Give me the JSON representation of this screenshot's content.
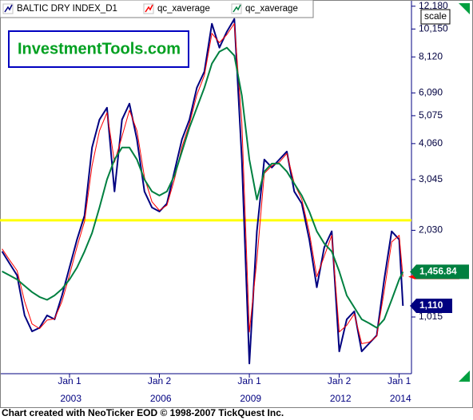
{
  "chart_data": {
    "type": "line",
    "logo": "InvestmentTools.com",
    "scale_label": "scale",
    "footer": "Chart created with NeoTicker EOD © 1998-2007 TickQuest Inc.",
    "x": [
      2000.75,
      2001,
      2001.25,
      2001.5,
      2001.75,
      2002,
      2002.25,
      2002.5,
      2002.75,
      2003,
      2003.25,
      2003.5,
      2003.75,
      2004,
      2004.25,
      2004.5,
      2004.75,
      2005,
      2005.25,
      2005.5,
      2005.75,
      2006,
      2006.25,
      2006.5,
      2006.75,
      2007,
      2007.25,
      2007.5,
      2007.75,
      2008,
      2008.25,
      2008.5,
      2008.75,
      2009,
      2009.25,
      2009.5,
      2009.75,
      2010,
      2010.25,
      2010.5,
      2010.75,
      2011,
      2011.25,
      2011.5,
      2011.75,
      2012,
      2012.25,
      2012.5,
      2012.75,
      2013,
      2013.25,
      2013.5,
      2013.75,
      2014,
      2014.125
    ],
    "series": [
      {
        "name": "BALTIC DRY INDEX_D1",
        "color": "#000080",
        "width": 2,
        "end_label": "1,110",
        "values": [
          1714,
          1557,
          1415,
          1028,
          905,
          931,
          1028,
          996,
          1206,
          1508,
          1887,
          2285,
          3934,
          4919,
          5411,
          2768,
          4919,
          5590,
          4195,
          2768,
          2435,
          2359,
          2514,
          3248,
          4195,
          4919,
          6350,
          7219,
          10590,
          8743,
          9934,
          11000,
          3574,
          700,
          2013,
          3574,
          3353,
          3574,
          3810,
          2768,
          2514,
          1887,
          1287,
          1770,
          2013,
          771,
          996,
          1062,
          771,
          822,
          876,
          1370,
          2013,
          1887,
          1110
        ]
      },
      {
        "name": "qc_xaverage",
        "color": "#ff0000",
        "width": 1,
        "values": [
          1750,
          1600,
          1470,
          1150,
          960,
          925,
          990,
          1000,
          1150,
          1420,
          1780,
          2180,
          3400,
          4500,
          5200,
          3500,
          4300,
          5300,
          4500,
          3100,
          2550,
          2380,
          2480,
          3050,
          3950,
          4750,
          6000,
          7000,
          9800,
          9100,
          9700,
          10600,
          4800,
          900,
          1600,
          3200,
          3400,
          3500,
          3750,
          2950,
          2600,
          2000,
          1400,
          1650,
          1950,
          900,
          950,
          1040,
          820,
          830,
          870,
          1250,
          1850,
          1950,
          1400
        ]
      },
      {
        "name": "qc_xaverage",
        "color": "#008040",
        "width": 2,
        "end_label": "1,456.84",
        "values": [
          1461,
          1415,
          1370,
          1302,
          1239,
          1191,
          1164,
          1206,
          1270,
          1370,
          1508,
          1714,
          1985,
          2435,
          3046,
          3574,
          3934,
          3934,
          3574,
          3046,
          2768,
          2681,
          2768,
          3146,
          3810,
          4614,
          5411,
          6350,
          7696,
          8467,
          8743,
          8200,
          5960,
          3574,
          2596,
          3248,
          3461,
          3461,
          3248,
          2950,
          2681,
          2359,
          2013,
          1827,
          1714,
          1461,
          1206,
          1096,
          996,
          965,
          931,
          996,
          1164,
          1370,
          1456.84
        ]
      }
    ],
    "hline": {
      "value": 2200,
      "color": "#ffff00"
    },
    "xlim": [
      2000.68,
      2014.41
    ],
    "xticks": [
      {
        "value": 2003,
        "label": "Jan 1 2003"
      },
      {
        "value": 2006,
        "label": "Jan 2 2006"
      },
      {
        "value": 2009,
        "label": "Jan 1 2009"
      },
      {
        "value": 2012,
        "label": "Jan 2 2012"
      },
      {
        "value": 2014,
        "label": "Jan 1 2014"
      }
    ],
    "ylim": [
      645,
      12800
    ],
    "log_scale": true,
    "yticks": [
      {
        "value": 1015,
        "label": "1,015"
      },
      {
        "value": 2030,
        "label": "2,030"
      },
      {
        "value": 3045,
        "label": "3,045"
      },
      {
        "value": 4060,
        "label": "4,060"
      },
      {
        "value": 5075,
        "label": "5,075"
      },
      {
        "value": 6090,
        "label": "6,090"
      },
      {
        "value": 8120,
        "label": "8,120"
      },
      {
        "value": 10150,
        "label": "10,150"
      },
      {
        "value": 12180,
        "label": "12,180"
      }
    ]
  }
}
